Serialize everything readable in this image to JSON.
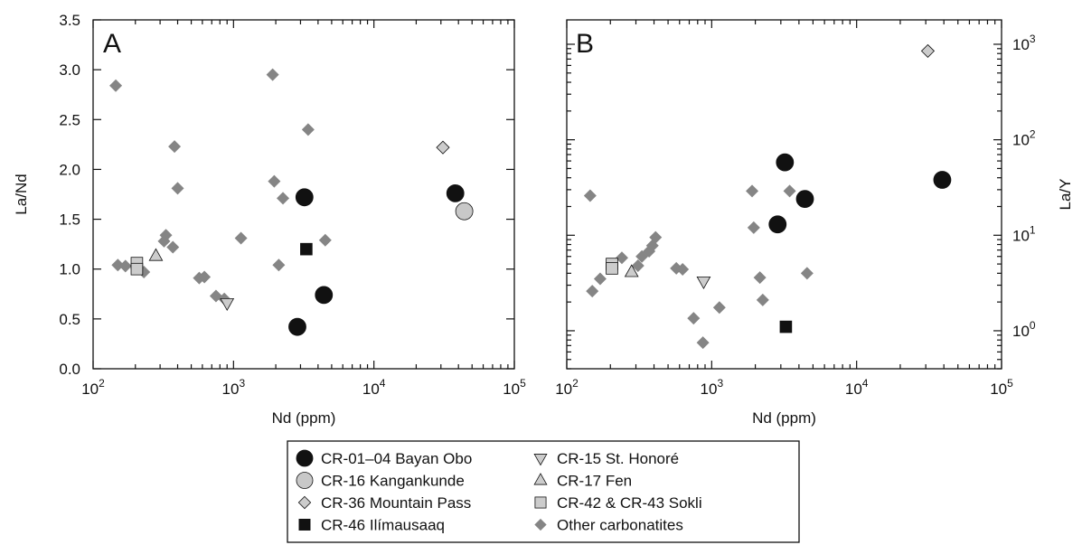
{
  "chart_data": [
    {
      "type": "scatter",
      "panel": "A",
      "xlabel": "Nd (ppm)",
      "ylabel": "La/Nd",
      "x_scale": "log",
      "y_scale": "linear",
      "xlim": [
        100,
        100000
      ],
      "ylim": [
        0.0,
        3.5
      ],
      "x_ticks": [
        100,
        1000,
        10000,
        100000
      ],
      "y_ticks": [
        0.0,
        0.5,
        1.0,
        1.5,
        2.0,
        2.5,
        3.0,
        3.5
      ],
      "y_tick_labels": [
        "0.0",
        "0.5",
        "1.0",
        "1.5",
        "2.0",
        "2.5",
        "3.0",
        "3.5"
      ],
      "grid": false,
      "series": [
        {
          "name": "CR-01–04 Bayan Obo",
          "marker": "circle",
          "color": "#111111",
          "points": [
            [
              3200,
              1.72
            ],
            [
              2850,
              0.42
            ],
            [
              4400,
              0.74
            ],
            [
              38000,
              1.76
            ]
          ]
        },
        {
          "name": "CR-16 Kangankunde",
          "marker": "circle",
          "color": "#c8c8c8",
          "points": [
            [
              44000,
              1.58
            ]
          ]
        },
        {
          "name": "CR-36 Mountain Pass",
          "marker": "diamond",
          "color": "#cccccc",
          "points": [
            [
              31000,
              2.22
            ]
          ]
        },
        {
          "name": "CR-46 Ilímausaaq",
          "marker": "square",
          "color": "#111111",
          "points": [
            [
              3300,
              1.2
            ]
          ]
        },
        {
          "name": "CR-15 St. Honoré",
          "marker": "triangle-down",
          "color": "#cccccc",
          "points": [
            [
              900,
              0.66
            ]
          ]
        },
        {
          "name": "CR-17 Fen",
          "marker": "triangle-up",
          "color": "#cccccc",
          "points": [
            [
              280,
              1.13
            ]
          ]
        },
        {
          "name": "CR-42 & CR-43 Sokli",
          "marker": "square",
          "color": "#cccccc",
          "points": [
            [
              205,
              1.06
            ],
            [
              205,
              1.0
            ]
          ]
        },
        {
          "name": "Other carbonatites",
          "marker": "diamond",
          "color": "#858585",
          "points": [
            [
              145,
              2.84
            ],
            [
              150,
              1.04
            ],
            [
              170,
              1.03
            ],
            [
              230,
              0.97
            ],
            [
              320,
              1.28
            ],
            [
              330,
              1.34
            ],
            [
              370,
              1.22
            ],
            [
              380,
              2.23
            ],
            [
              400,
              1.81
            ],
            [
              570,
              0.91
            ],
            [
              620,
              0.92
            ],
            [
              750,
              0.73
            ],
            [
              860,
              0.7
            ],
            [
              1130,
              1.31
            ],
            [
              1900,
              2.95
            ],
            [
              1950,
              1.88
            ],
            [
              2100,
              1.04
            ],
            [
              2250,
              1.71
            ],
            [
              3400,
              2.4
            ],
            [
              4500,
              1.29
            ]
          ]
        }
      ]
    },
    {
      "type": "scatter",
      "panel": "B",
      "xlabel": "Nd (ppm)",
      "ylabel": "La/Y",
      "x_scale": "log",
      "y_scale": "log",
      "xlim": [
        100,
        100000
      ],
      "ylim": [
        0.4,
        1800
      ],
      "x_ticks": [
        100,
        1000,
        10000,
        100000
      ],
      "y_ticks": [
        1,
        10,
        100,
        1000
      ],
      "grid": false,
      "series": [
        {
          "name": "CR-01–04 Bayan Obo",
          "marker": "circle",
          "color": "#111111",
          "points": [
            [
              3200,
              58
            ],
            [
              2850,
              13
            ],
            [
              4400,
              24
            ],
            [
              39000,
              38
            ]
          ]
        },
        {
          "name": "CR-36 Mountain Pass",
          "marker": "diamond",
          "color": "#cccccc",
          "points": [
            [
              31000,
              850
            ]
          ]
        },
        {
          "name": "CR-46 Ilímausaaq",
          "marker": "square",
          "color": "#111111",
          "points": [
            [
              3250,
              1.1
            ]
          ]
        },
        {
          "name": "CR-15 St. Honoré",
          "marker": "triangle-down",
          "color": "#cccccc",
          "points": [
            [
              880,
              3.3
            ]
          ]
        },
        {
          "name": "CR-17 Fen",
          "marker": "triangle-up",
          "color": "#cccccc",
          "points": [
            [
              280,
              4.1
            ]
          ]
        },
        {
          "name": "CR-42 & CR-43 Sokli",
          "marker": "square",
          "color": "#cccccc",
          "points": [
            [
              205,
              5.0
            ],
            [
              205,
              4.5
            ]
          ]
        },
        {
          "name": "Other carbonatites",
          "marker": "diamond",
          "color": "#858585",
          "points": [
            [
              145,
              26
            ],
            [
              150,
              2.6
            ],
            [
              170,
              3.5
            ],
            [
              240,
              5.8
            ],
            [
              310,
              4.8
            ],
            [
              330,
              6.0
            ],
            [
              370,
              6.8
            ],
            [
              390,
              7.8
            ],
            [
              410,
              9.5
            ],
            [
              570,
              4.5
            ],
            [
              630,
              4.4
            ],
            [
              750,
              1.35
            ],
            [
              870,
              0.75
            ],
            [
              1130,
              1.75
            ],
            [
              1900,
              29
            ],
            [
              1950,
              12
            ],
            [
              2150,
              3.6
            ],
            [
              2250,
              2.1
            ],
            [
              3450,
              29
            ],
            [
              4550,
              4.0
            ]
          ]
        }
      ]
    }
  ],
  "panels": {
    "a": {
      "letter": "A",
      "xlabel": "Nd (ppm)",
      "ylabel": "La/Nd",
      "x_tick_exponents": [
        "2",
        "3",
        "4",
        "5"
      ]
    },
    "b": {
      "letter": "B",
      "xlabel": "Nd (ppm)",
      "ylabel": "La/Y",
      "x_tick_exponents": [
        "2",
        "3",
        "4",
        "5"
      ],
      "y_tick_exponents": [
        "0",
        "1",
        "2",
        "3"
      ]
    }
  },
  "tick_base": "10",
  "legend": [
    {
      "label": "CR-01–04 Bayan Obo",
      "marker": "circle",
      "color": "#111111"
    },
    {
      "label": "CR-15 St. Honoré",
      "marker": "triangle-down",
      "color": "#cccccc"
    },
    {
      "label": "CR-16 Kangankunde",
      "marker": "circle",
      "color": "#c8c8c8"
    },
    {
      "label": "CR-17 Fen",
      "marker": "triangle-up",
      "color": "#cccccc"
    },
    {
      "label": "CR-36 Mountain Pass",
      "marker": "diamond",
      "color": "#cccccc"
    },
    {
      "label": "CR-42 & CR-43 Sokli",
      "marker": "square",
      "color": "#cccccc"
    },
    {
      "label": "CR-46 Ilímausaaq",
      "marker": "square",
      "color": "#111111"
    },
    {
      "label": "Other carbonatites",
      "marker": "diamond",
      "color": "#858585"
    }
  ],
  "legend_position": "bottom-center"
}
